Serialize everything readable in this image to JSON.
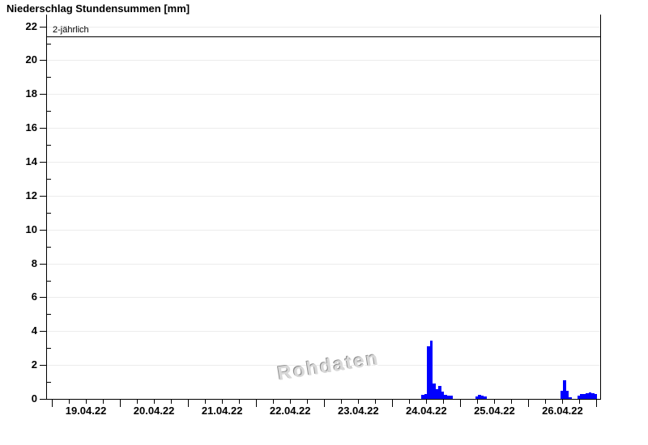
{
  "chart_data": {
    "type": "bar",
    "title": "Niederschlag Stundensummen [mm]",
    "xlabel": "",
    "ylabel": "",
    "ylim": [
      0,
      22.7
    ],
    "y_major_ticks": [
      0,
      2,
      4,
      6,
      8,
      10,
      12,
      14,
      16,
      18,
      20,
      22
    ],
    "y_minor_step": 1,
    "x_tick_labels": [
      "19.04.22",
      "20.04.22",
      "21.04.22",
      "22.04.22",
      "23.04.22",
      "24.04.22",
      "25.04.22",
      "26.04.22"
    ],
    "x_minor_step_hours": 6,
    "grid": "horizontal-light",
    "legend": "none",
    "threshold": {
      "label": "2-jährlich",
      "value": 21.4
    },
    "watermark": "Rohdaten",
    "bar_color": "#0000ff",
    "grid_color": "#ececec",
    "points": [
      {
        "date": "24.04.22",
        "hour": 10,
        "value": 0.25
      },
      {
        "date": "24.04.22",
        "hour": 11,
        "value": 0.3
      },
      {
        "date": "24.04.22",
        "hour": 12,
        "value": 3.1
      },
      {
        "date": "24.04.22",
        "hour": 13,
        "value": 3.45
      },
      {
        "date": "24.04.22",
        "hour": 14,
        "value": 0.9
      },
      {
        "date": "24.04.22",
        "hour": 15,
        "value": 0.55
      },
      {
        "date": "24.04.22",
        "hour": 16,
        "value": 0.75
      },
      {
        "date": "24.04.22",
        "hour": 17,
        "value": 0.45
      },
      {
        "date": "24.04.22",
        "hour": 18,
        "value": 0.25
      },
      {
        "date": "24.04.22",
        "hour": 19,
        "value": 0.2
      },
      {
        "date": "24.04.22",
        "hour": 20,
        "value": 0.2
      },
      {
        "date": "25.04.22",
        "hour": 5,
        "value": 0.15
      },
      {
        "date": "25.04.22",
        "hour": 6,
        "value": 0.25
      },
      {
        "date": "25.04.22",
        "hour": 7,
        "value": 0.2
      },
      {
        "date": "25.04.22",
        "hour": 8,
        "value": 0.15
      },
      {
        "date": "26.04.22",
        "hour": 11,
        "value": 0.5
      },
      {
        "date": "26.04.22",
        "hour": 12,
        "value": 1.1
      },
      {
        "date": "26.04.22",
        "hour": 13,
        "value": 0.5
      },
      {
        "date": "26.04.22",
        "hour": 14,
        "value": 0.1
      },
      {
        "date": "26.04.22",
        "hour": 17,
        "value": 0.2
      },
      {
        "date": "26.04.22",
        "hour": 18,
        "value": 0.3
      },
      {
        "date": "26.04.22",
        "hour": 19,
        "value": 0.3
      },
      {
        "date": "26.04.22",
        "hour": 20,
        "value": 0.35
      },
      {
        "date": "26.04.22",
        "hour": 21,
        "value": 0.4
      },
      {
        "date": "26.04.22",
        "hour": 22,
        "value": 0.35
      },
      {
        "date": "26.04.22",
        "hour": 23,
        "value": 0.3
      }
    ]
  }
}
